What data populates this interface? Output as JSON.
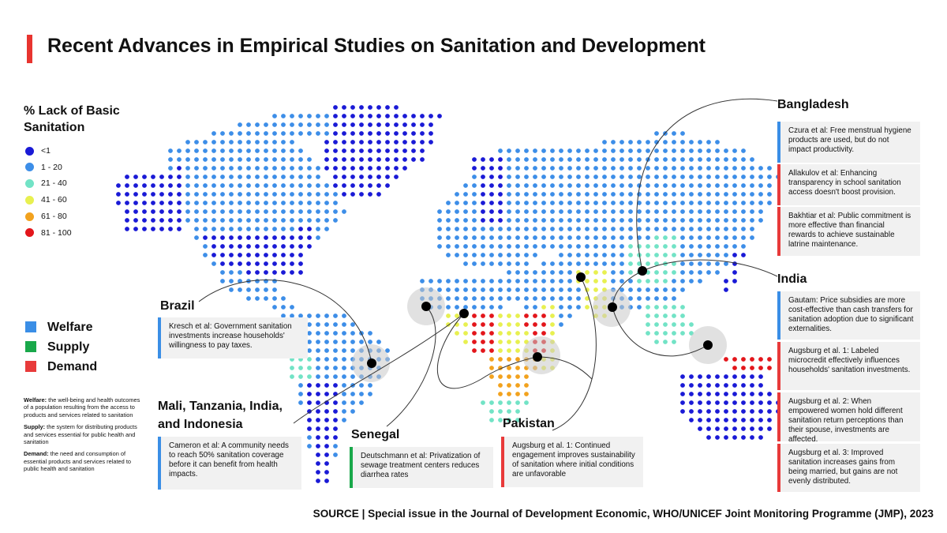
{
  "title": "Recent Advances in Empirical Studies on Sanitation and Development",
  "legend": {
    "title": "% Lack of Basic Sanitation",
    "items": [
      {
        "label": "<1",
        "color": "#1a1ad6"
      },
      {
        "label": "1 - 20",
        "color": "#3d8ee8"
      },
      {
        "label": "21 - 40",
        "color": "#72e3c6"
      },
      {
        "label": "41 - 60",
        "color": "#e8f050"
      },
      {
        "label": "61 - 80",
        "color": "#f2a21e"
      },
      {
        "label": "81 - 100",
        "color": "#e3161b"
      }
    ]
  },
  "categories": [
    {
      "label": "Welfare",
      "color": "#3a8ee6"
    },
    {
      "label": "Supply",
      "color": "#19a84a"
    },
    {
      "label": "Demand",
      "color": "#e83a3a"
    }
  ],
  "definitions": [
    {
      "term": "Welfare:",
      "text": "the well-being and health outcomes of a population resulting from the access to products and services related to sanitation"
    },
    {
      "term": "Supply:",
      "text": "the system for distributing products and services essential for public health and sanitation"
    },
    {
      "term": "Demand:",
      "text": "the need and consumption of essential products and services related to public health and sanitation"
    }
  ],
  "regions": [
    {
      "name": "Bangladesh",
      "studies": [
        {
          "text": "Czura et al: Free menstrual hygiene products are used, but do not impact productivity.",
          "category": "Welfare"
        },
        {
          "text": "Allakulov et al: Enhancing transparency in school sanitation access doesn't boost provision.",
          "category": "Demand"
        },
        {
          "text": "Bakhtiar et al: Public commitment is more effective than financial rewards to achieve sustainable latrine maintenance.",
          "category": "Demand"
        }
      ]
    },
    {
      "name": "India",
      "studies": [
        {
          "text": "Gautam: Price subsidies are more cost-effective than cash transfers for sanitation adoption due to significant externalities.",
          "category": "Welfare"
        },
        {
          "text": "Augsburg et al. 1: Labeled microcredit effectively influences households' sanitation investments.",
          "category": "Demand"
        },
        {
          "text": "Augsburg et al. 2: When empowered women hold different sanitation return perceptions than their spouse, investments are affected.",
          "category": "Demand"
        },
        {
          "text": "Augsburg et al. 3: Improved sanitation increases gains from being married, but gains are not evenly distributed.",
          "category": "Demand"
        }
      ]
    },
    {
      "name": "Brazil",
      "studies": [
        {
          "text": "Kresch et al: Government sanitation investments increase households' willingness to pay taxes.",
          "category": "Welfare"
        }
      ]
    },
    {
      "name": "Mali, Tanzania, India, and Indonesia",
      "studies": [
        {
          "text": "Cameron et al: A community needs to reach 50% sanitation coverage before it can benefit from health impacts.",
          "category": "Welfare"
        }
      ]
    },
    {
      "name": "Senegal",
      "studies": [
        {
          "text": "Deutschmann et al: Privatization of sewage treatment centers reduces diarrhea rates",
          "category": "Supply"
        }
      ]
    },
    {
      "name": "Pakistan",
      "studies": [
        {
          "text": "Augsburg et al. 1: Continued engagement improves sustainability of sanitation where initial conditions are unfavorable",
          "category": "Demand"
        }
      ]
    }
  ],
  "source": {
    "label": "SOURCE",
    "text": "| Special issue in the Journal of Development Economic, WHO/UNICEF Joint Monitoring Programme (JMP), 2023"
  }
}
